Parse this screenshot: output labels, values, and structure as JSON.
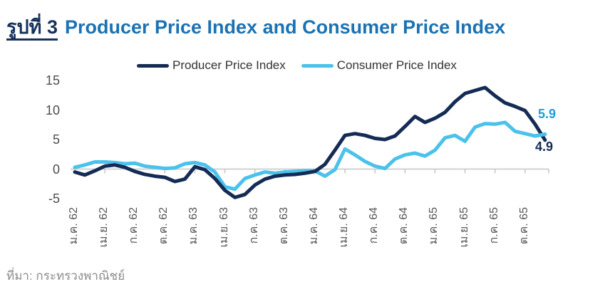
{
  "figure": {
    "label": "รูปที่ 3",
    "title": "Producer Price Index and Consumer Price Index",
    "source": "ที่มา: กระทรวงพาณิชย์"
  },
  "colors": {
    "figure_label": "#16325c",
    "title": "#1b72b3",
    "ppi_line": "#142c55",
    "cpi_line": "#4ac2ec",
    "ppi_end_label": "#142c55",
    "cpi_end_label": "#1e9ed9",
    "axis_line": "#c6c6c6",
    "tick_text": "#595959"
  },
  "chart_data": {
    "type": "line",
    "title": "Producer Price Index and Consumer Price Index",
    "x_frequency": "monthly (Jan 2019 - Dec 2022, Thai Buddhist years 62-65), axis ticks every 3 months",
    "x_tick_labels": [
      "ม.ค. 62",
      "เม.ย. 62",
      "ก.ค. 62",
      "ต.ค. 62",
      "ม.ค. 63",
      "เม.ย. 63",
      "ก.ค. 63",
      "ต.ค. 63",
      "ม.ค. 64",
      "เม.ย. 64",
      "ก.ค. 64",
      "ต.ค. 64",
      "ม.ค. 65",
      "เม.ย. 65",
      "ก.ค. 65",
      "ต.ค. 65"
    ],
    "y_ticks": [
      15,
      10,
      5,
      0,
      -5
    ],
    "ylim": [
      -6.5,
      16.5
    ],
    "gridlines": "horizontal zero line only, with small ticks every 3 months",
    "legend_position": "top-center",
    "series": [
      {
        "name": "Producer Price Index",
        "end_label": "4.9",
        "values": [
          -0.5,
          -1.0,
          -0.3,
          0.5,
          0.7,
          0.3,
          -0.4,
          -0.9,
          -1.2,
          -1.4,
          -2.1,
          -1.7,
          0.4,
          -0.1,
          -1.6,
          -3.6,
          -4.8,
          -4.3,
          -2.7,
          -1.7,
          -1.2,
          -1.0,
          -0.9,
          -0.7,
          -0.4,
          0.8,
          3.2,
          5.7,
          6.0,
          5.7,
          5.2,
          5.0,
          5.6,
          7.2,
          8.9,
          7.9,
          8.6,
          9.6,
          11.4,
          12.8,
          13.3,
          13.8,
          12.4,
          11.2,
          10.6,
          9.9,
          7.6,
          4.9
        ]
      },
      {
        "name": "Consumer Price Index",
        "end_label": "5.9",
        "values": [
          0.3,
          0.7,
          1.2,
          1.2,
          1.1,
          0.9,
          1.0,
          0.5,
          0.3,
          0.1,
          0.2,
          0.9,
          1.1,
          0.7,
          -0.5,
          -3.0,
          -3.4,
          -1.6,
          -1.0,
          -0.5,
          -0.7,
          -0.5,
          -0.4,
          -0.3,
          -0.3,
          -1.2,
          -0.1,
          3.4,
          2.4,
          1.3,
          0.5,
          0.1,
          1.7,
          2.4,
          2.7,
          2.2,
          3.2,
          5.3,
          5.7,
          4.7,
          7.1,
          7.7,
          7.6,
          7.9,
          6.4,
          6.0,
          5.6,
          5.9
        ]
      }
    ]
  }
}
